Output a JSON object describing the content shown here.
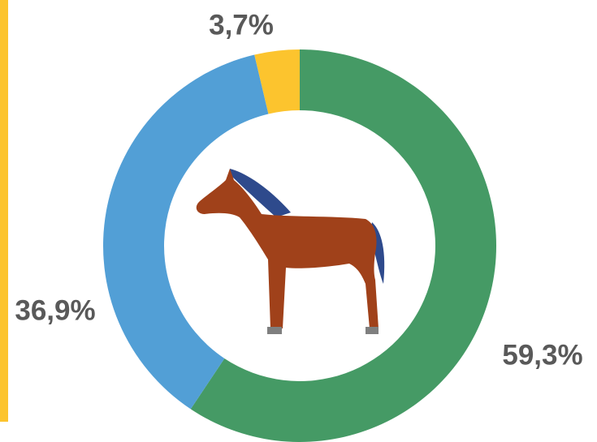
{
  "chart_data": {
    "type": "donut",
    "values": [
      59.3,
      36.9,
      3.7
    ],
    "value_labels": [
      "59,3%",
      "36,9%",
      "3,7%"
    ],
    "colors": [
      "#459a65",
      "#529fd6",
      "#fcc42e"
    ]
  }
}
